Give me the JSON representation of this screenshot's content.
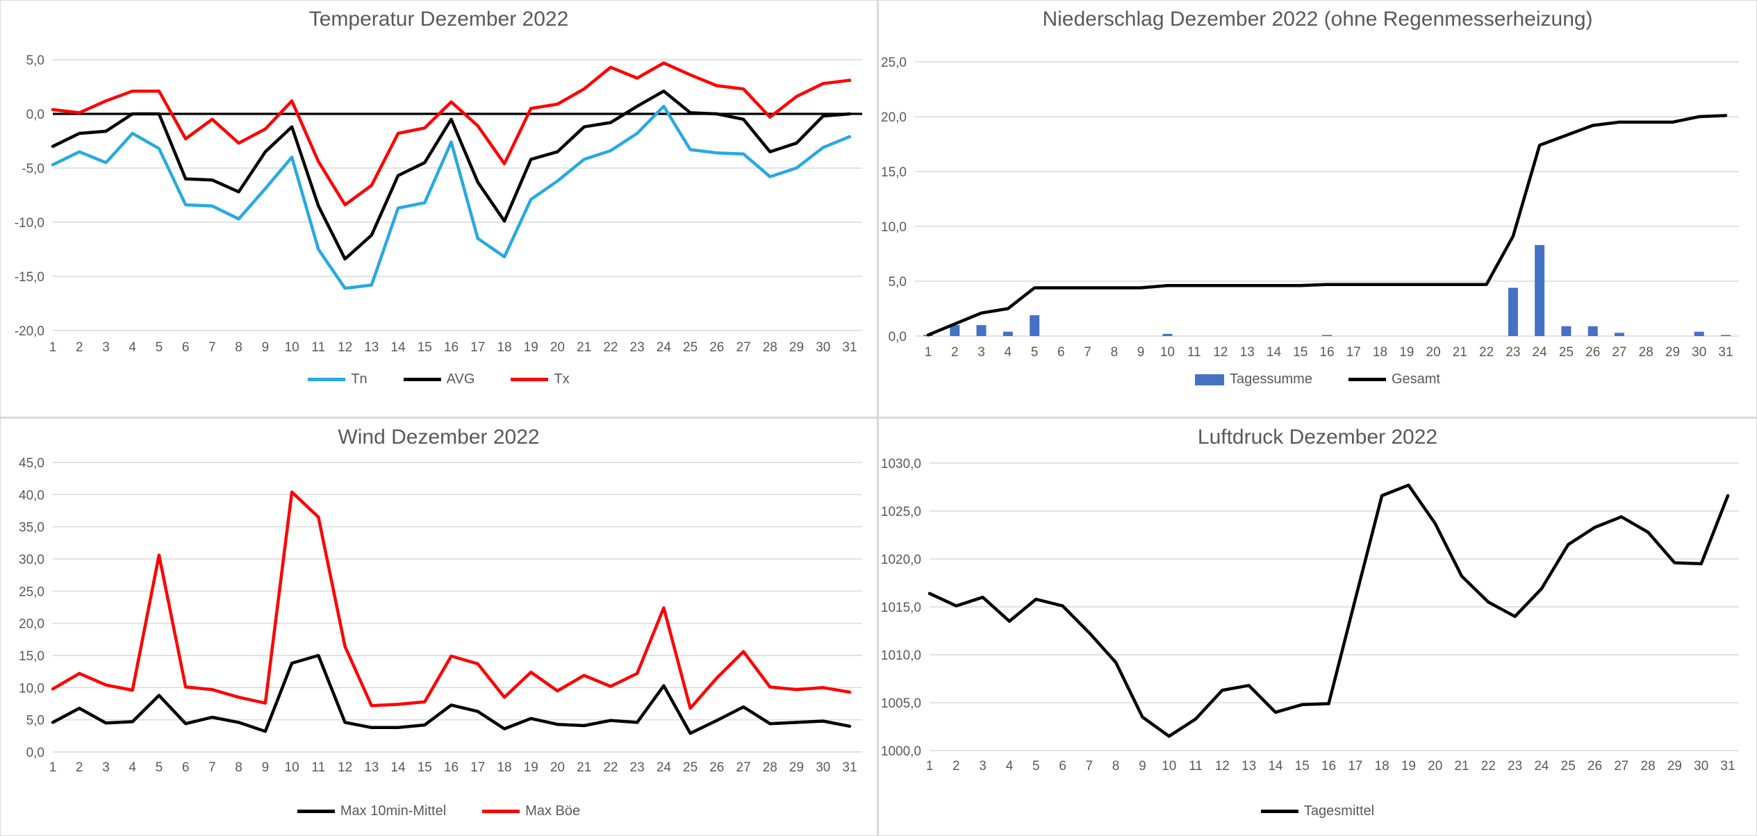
{
  "style": {
    "background": "#FFFFFF",
    "panel_border": "#D9D9D9",
    "grid_color": "#D9D9D9",
    "text_color": "#595959",
    "zero_axis_color": "#000000"
  },
  "chart_data": [
    {
      "id": "temperature",
      "type": "line",
      "title": "Temperatur Dezember 2022",
      "legend_position": "bottom",
      "grid": true,
      "categories": [
        1,
        2,
        3,
        4,
        5,
        6,
        7,
        8,
        9,
        10,
        11,
        12,
        13,
        14,
        15,
        16,
        17,
        18,
        19,
        20,
        21,
        22,
        23,
        24,
        25,
        26,
        27,
        28,
        29,
        30,
        31
      ],
      "ylim": [
        -20,
        5
      ],
      "zero_axis": true,
      "yticks": [
        {
          "v": 5,
          "label": "5,0"
        },
        {
          "v": 0,
          "label": "0,0"
        },
        {
          "v": -5,
          "label": "-5,0"
        },
        {
          "v": -10,
          "label": "-10,0"
        },
        {
          "v": -15,
          "label": "-15,0"
        },
        {
          "v": -20,
          "label": "-20,0"
        }
      ],
      "series": [
        {
          "name": "Tn",
          "type": "line",
          "color": "#27A9E1",
          "values": [
            -4.7,
            -3.5,
            -4.5,
            -1.8,
            -3.2,
            -8.4,
            -8.5,
            -9.7,
            -6.9,
            -4.0,
            -12.5,
            -16.1,
            -15.8,
            -8.7,
            -8.2,
            -2.6,
            -11.5,
            -13.2,
            -7.9,
            -6.2,
            -4.2,
            -3.4,
            -1.8,
            0.7,
            -3.3,
            -3.6,
            -3.7,
            -5.8,
            -5.0,
            -3.1,
            -2.1
          ]
        },
        {
          "name": "AVG",
          "type": "line",
          "color": "#000000",
          "values": [
            -3.0,
            -1.8,
            -1.6,
            0.0,
            0.0,
            -6.0,
            -6.1,
            -7.2,
            -3.5,
            -1.2,
            -8.5,
            -13.4,
            -11.2,
            -5.7,
            -4.5,
            -0.5,
            -6.3,
            -9.9,
            -4.2,
            -3.5,
            -1.2,
            -0.8,
            0.7,
            2.1,
            0.1,
            0.0,
            -0.5,
            -3.5,
            -2.7,
            -0.2,
            0.0
          ]
        },
        {
          "name": "Tx",
          "type": "line",
          "color": "#FF0000",
          "values": [
            0.4,
            0.1,
            1.2,
            2.1,
            2.1,
            -2.3,
            -0.5,
            -2.7,
            -1.4,
            1.2,
            -4.4,
            -8.4,
            -6.6,
            -1.8,
            -1.3,
            1.1,
            -1.1,
            -4.6,
            0.5,
            0.9,
            2.3,
            4.3,
            3.3,
            4.7,
            3.6,
            2.6,
            2.3,
            -0.3,
            1.6,
            2.8,
            3.1
          ]
        }
      ]
    },
    {
      "id": "precipitation",
      "type": "bar+line",
      "title": "Niederschlag Dezember 2022 (ohne Regenmesserheizung)",
      "legend_position": "bottom",
      "grid": true,
      "categories": [
        1,
        2,
        3,
        4,
        5,
        6,
        7,
        8,
        9,
        10,
        11,
        12,
        13,
        14,
        15,
        16,
        17,
        18,
        19,
        20,
        21,
        22,
        23,
        24,
        25,
        26,
        27,
        28,
        29,
        30,
        31
      ],
      "ylim": [
        0,
        25
      ],
      "zero_axis": false,
      "yticks": [
        {
          "v": 25,
          "label": "25,0"
        },
        {
          "v": 20,
          "label": "20,0"
        },
        {
          "v": 15,
          "label": "15,0"
        },
        {
          "v": 10,
          "label": "10,0"
        },
        {
          "v": 5,
          "label": "5,0"
        },
        {
          "v": 0,
          "label": "0,0"
        }
      ],
      "series": [
        {
          "name": "Tagessumme",
          "type": "bar",
          "color": "#4472C4",
          "values": [
            0.1,
            1.0,
            1.0,
            0.4,
            1.9,
            0,
            0,
            0,
            0,
            0.2,
            0,
            0,
            0,
            0,
            0,
            0.1,
            0,
            0,
            0,
            0,
            0,
            0,
            4.4,
            8.3,
            0.9,
            0.9,
            0.3,
            0,
            0,
            0.4,
            0.1
          ]
        },
        {
          "name": "Gesamt",
          "type": "line",
          "color": "#000000",
          "values": [
            0.1,
            1.1,
            2.1,
            2.5,
            4.4,
            4.4,
            4.4,
            4.4,
            4.4,
            4.6,
            4.6,
            4.6,
            4.6,
            4.6,
            4.6,
            4.7,
            4.7,
            4.7,
            4.7,
            4.7,
            4.7,
            4.7,
            9.1,
            17.4,
            18.3,
            19.2,
            19.5,
            19.5,
            19.5,
            20.0,
            20.1
          ]
        }
      ]
    },
    {
      "id": "wind",
      "type": "line",
      "title": "Wind Dezember 2022",
      "legend_position": "bottom",
      "grid": true,
      "categories": [
        1,
        2,
        3,
        4,
        5,
        6,
        7,
        8,
        9,
        10,
        11,
        12,
        13,
        14,
        15,
        16,
        17,
        18,
        19,
        20,
        21,
        22,
        23,
        24,
        25,
        26,
        27,
        28,
        29,
        30,
        31
      ],
      "ylim": [
        0,
        45
      ],
      "zero_axis": false,
      "yticks": [
        {
          "v": 45,
          "label": "45,0"
        },
        {
          "v": 40,
          "label": "40,0"
        },
        {
          "v": 35,
          "label": "35,0"
        },
        {
          "v": 30,
          "label": "30,0"
        },
        {
          "v": 25,
          "label": "25,0"
        },
        {
          "v": 20,
          "label": "20,0"
        },
        {
          "v": 15,
          "label": "15,0"
        },
        {
          "v": 10,
          "label": "10,0"
        },
        {
          "v": 5,
          "label": "5,0"
        },
        {
          "v": 0,
          "label": "0,0"
        }
      ],
      "series": [
        {
          "name": "Max 10min-Mittel",
          "type": "line",
          "color": "#000000",
          "values": [
            4.6,
            6.8,
            4.5,
            4.7,
            8.8,
            4.4,
            5.4,
            4.6,
            3.2,
            13.8,
            15.0,
            4.6,
            3.8,
            3.8,
            4.2,
            7.3,
            6.3,
            3.6,
            5.2,
            4.3,
            4.1,
            4.9,
            4.6,
            10.3,
            2.9,
            4.9,
            7.0,
            4.4,
            4.6,
            4.8,
            4.0
          ]
        },
        {
          "name": "Max Böe",
          "type": "line",
          "color": "#FF0000",
          "values": [
            9.8,
            12.2,
            10.4,
            9.6,
            30.6,
            10.1,
            9.7,
            8.5,
            7.6,
            40.4,
            36.5,
            16.4,
            7.2,
            7.4,
            7.8,
            14.9,
            13.7,
            8.5,
            12.4,
            9.5,
            11.9,
            10.2,
            12.2,
            22.4,
            6.8,
            11.5,
            15.6,
            10.1,
            9.7,
            10.0,
            9.3
          ]
        }
      ]
    },
    {
      "id": "pressure",
      "type": "line",
      "title": "Luftdruck Dezember 2022",
      "legend_position": "bottom",
      "grid": true,
      "categories": [
        1,
        2,
        3,
        4,
        5,
        6,
        7,
        8,
        9,
        10,
        11,
        12,
        13,
        14,
        15,
        16,
        17,
        18,
        19,
        20,
        21,
        22,
        23,
        24,
        25,
        26,
        27,
        28,
        29,
        30,
        31
      ],
      "ylim": [
        1000,
        1030
      ],
      "zero_axis": false,
      "yticks": [
        {
          "v": 1030,
          "label": "1030,0"
        },
        {
          "v": 1025,
          "label": "1025,0"
        },
        {
          "v": 1020,
          "label": "1020,0"
        },
        {
          "v": 1015,
          "label": "1015,0"
        },
        {
          "v": 1010,
          "label": "1010,0"
        },
        {
          "v": 1005,
          "label": "1005,0"
        },
        {
          "v": 1000,
          "label": "1000,0"
        }
      ],
      "series": [
        {
          "name": "Tagesmittel",
          "type": "line",
          "color": "#000000",
          "values": [
            1016.4,
            1015.1,
            1016.0,
            1013.5,
            1015.8,
            1015.1,
            1012.3,
            1009.2,
            1003.5,
            1001.5,
            1003.3,
            1006.3,
            1006.8,
            1004.0,
            1004.8,
            1004.9,
            1015.8,
            1026.6,
            1027.7,
            1023.7,
            1018.2,
            1015.5,
            1014.0,
            1016.9,
            1021.5,
            1023.3,
            1024.4,
            1022.8,
            1019.6,
            1019.5,
            1026.6
          ]
        }
      ]
    }
  ]
}
